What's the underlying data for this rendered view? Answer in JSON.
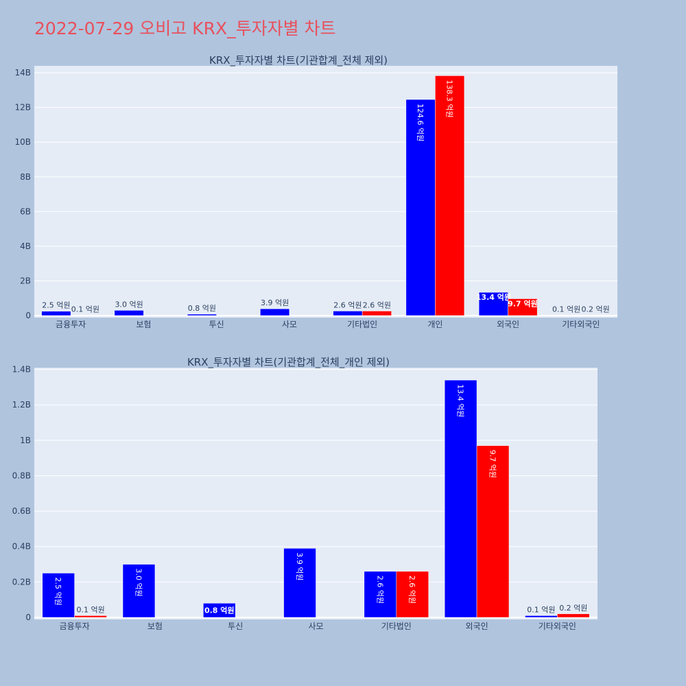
{
  "title": "2022-07-29 오비고 KRX_투자자별 차트",
  "colors": {
    "buy": "#0000ff",
    "sell": "#ff0000",
    "plot_bg": "#e5ecf6",
    "page_bg": "#b0c4de",
    "grid": "#ffffff"
  },
  "chart_data": [
    {
      "type": "bar",
      "title": "KRX_투자자별 차트(기관합계_전체 제외)",
      "categories": [
        "금융투자",
        "보험",
        "투신",
        "사모",
        "기타법인",
        "개인",
        "외국인",
        "기타외국인"
      ],
      "ylim": [
        0,
        14400000000
      ],
      "yticks": [
        0,
        2000000000,
        4000000000,
        6000000000,
        8000000000,
        10000000000,
        12000000000,
        14000000000
      ],
      "ytick_labels": [
        "0",
        "2B",
        "4B",
        "6B",
        "8B",
        "10B",
        "12B",
        "14B"
      ],
      "grid": true,
      "series": [
        {
          "color": "#0000ff",
          "values": [
            250000000,
            300000000,
            80000000,
            390000000,
            260000000,
            12460000000,
            1340000000,
            10000000
          ],
          "labels": [
            "2.5 억원",
            "3.0 억원",
            "0.8 억원",
            "3.9 억원",
            "2.6 억원",
            "124.6 억원",
            "13.4 억원",
            "0.1 억원"
          ]
        },
        {
          "color": "#ff0000",
          "values": [
            10000000,
            0,
            0,
            0,
            260000000,
            13830000000,
            970000000,
            20000000
          ],
          "labels": [
            "0.1 억원",
            "",
            "",
            "",
            "2.6 억원",
            "138.3 억원",
            "9.7 억원",
            "0.2 억원"
          ]
        }
      ]
    },
    {
      "type": "bar",
      "title": "KRX_투자자별 차트(기관합계_전체_개인 제외)",
      "categories": [
        "금융투자",
        "보험",
        "투신",
        "사모",
        "기타법인",
        "외국인",
        "기타외국인"
      ],
      "ylim": [
        0,
        1410000000
      ],
      "yticks": [
        0,
        200000000,
        400000000,
        600000000,
        800000000,
        1000000000,
        1200000000,
        1400000000
      ],
      "ytick_labels": [
        "0",
        "0.2B",
        "0.4B",
        "0.6B",
        "0.8B",
        "1B",
        "1.2B",
        "1.4B"
      ],
      "grid": true,
      "series": [
        {
          "color": "#0000ff",
          "values": [
            250000000,
            300000000,
            80000000,
            390000000,
            260000000,
            1340000000,
            10000000
          ],
          "labels": [
            "2.5 억원",
            "3.0 억원",
            "0.8 억원",
            "3.9 억원",
            "2.6 억원",
            "13.4 억원",
            "0.1 억원"
          ]
        },
        {
          "color": "#ff0000",
          "values": [
            10000000,
            0,
            0,
            0,
            260000000,
            970000000,
            20000000
          ],
          "labels": [
            "0.1 억원",
            "",
            "",
            "",
            "2.6 억원",
            "9.7 억원",
            "0.2 억원"
          ]
        }
      ]
    }
  ]
}
